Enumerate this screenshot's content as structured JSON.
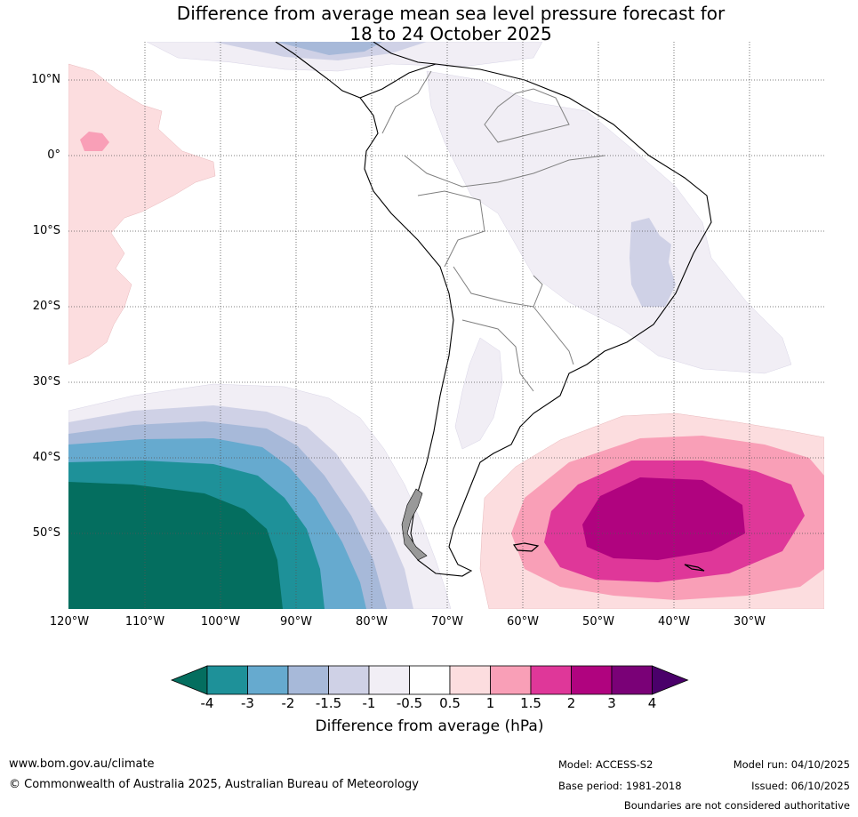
{
  "title": {
    "line1": "Difference from average mean sea level pressure forecast for",
    "line2": "18 to 24 October 2025"
  },
  "axes": {
    "lat_labels": [
      "10°N",
      "0°",
      "10°S",
      "20°S",
      "30°S",
      "40°S",
      "50°S"
    ],
    "lon_labels": [
      "120°W",
      "110°W",
      "100°W",
      "90°W",
      "80°W",
      "70°W",
      "60°W",
      "50°W",
      "40°W",
      "30°W"
    ]
  },
  "colorbar": {
    "label": "Difference from average (hPa)",
    "ticks": [
      "-4",
      "-3",
      "-2",
      "-1.5",
      "-1",
      "-0.5",
      "0.5",
      "1",
      "1.5",
      "2",
      "3",
      "4"
    ],
    "colors": {
      "below_min": "#046e5f",
      "bins": [
        "#1e9199",
        "#66aacf",
        "#a7b9d9",
        "#cfd1e6",
        "#f1eef5",
        "#ffffff",
        "#fcdddf",
        "#f99fb7",
        "#df3799",
        "#b0037f",
        "#7a0177"
      ],
      "above_max": "#4a006a"
    }
  },
  "footer": {
    "website": "www.bom.gov.au/climate",
    "copyright": "© Commonwealth of Australia 2025, Australian Bureau of Meteorology",
    "model": "Model: ACCESS-S2",
    "base_period": "Base period: 1981-2018",
    "model_run": "Model run: 04/10/2025",
    "issued": "Issued: 06/10/2025",
    "disclaimer": "Boundaries are not considered authoritative"
  }
}
